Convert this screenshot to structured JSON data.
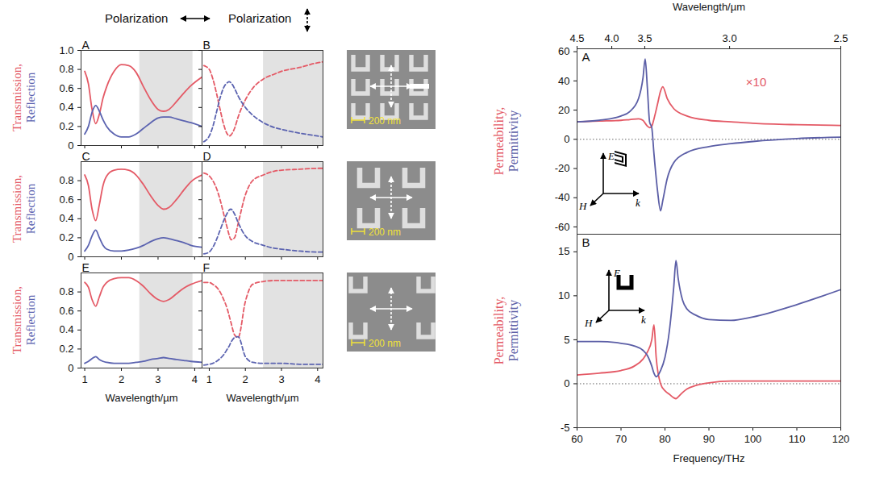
{
  "headers": [
    "Polarization",
    "Polarization"
  ],
  "images": [
    {
      "scale_bar": "200 nm"
    },
    {
      "scale_bar": "200 nm"
    },
    {
      "scale_bar": "200 nm"
    }
  ],
  "chart_data": [
    {
      "type": "line",
      "panel": "A",
      "ylabel": [
        "Transmission,",
        "Reflection"
      ],
      "xlim": [
        0.9,
        4.2
      ],
      "xticks": [
        1,
        2,
        3,
        4
      ],
      "ylim": [
        0,
        1
      ],
      "yticks": [
        0,
        0.2,
        0.4,
        0.6,
        0.8,
        {
          "value": 1,
          "label": "1.0"
        }
      ],
      "tick_labels": "y",
      "band": [
        2.5,
        3.95
      ],
      "x": [
        1,
        1.1,
        1.2,
        1.3,
        1.4,
        1.5,
        1.6,
        1.8,
        2,
        2.2,
        2.4,
        2.6,
        2.8,
        3,
        3.15,
        3.3,
        3.5,
        3.7,
        3.9,
        4.2
      ],
      "series": [
        {
          "name": "Transmission",
          "color": "#e45a66",
          "line_style": "solid",
          "values": [
            0.78,
            0.65,
            0.38,
            0.23,
            0.33,
            0.5,
            0.62,
            0.78,
            0.85,
            0.84,
            0.77,
            0.62,
            0.48,
            0.38,
            0.36,
            0.38,
            0.46,
            0.55,
            0.63,
            0.72
          ]
        },
        {
          "name": "Reflection",
          "color": "#5b63b0",
          "line_style": "solid",
          "values": [
            0.12,
            0.2,
            0.35,
            0.42,
            0.36,
            0.27,
            0.2,
            0.12,
            0.09,
            0.09,
            0.12,
            0.18,
            0.24,
            0.29,
            0.3,
            0.3,
            0.28,
            0.26,
            0.24,
            0.2
          ]
        }
      ]
    },
    {
      "type": "line",
      "panel": "B",
      "xlim": [
        0.8,
        4.15
      ],
      "xticks": [
        1,
        2,
        3,
        4
      ],
      "ylim": [
        0,
        1
      ],
      "yticks": [
        0,
        0.2,
        0.4,
        0.6,
        0.8,
        {
          "value": 1,
          "label": "1.0"
        }
      ],
      "tick_labels": false,
      "band": [
        2.5,
        4.15
      ],
      "x": [
        0.85,
        1,
        1.1,
        1.2,
        1.3,
        1.4,
        1.5,
        1.55,
        1.6,
        1.7,
        1.8,
        2,
        2.2,
        2.5,
        2.8,
        3,
        3.5,
        4,
        4.15
      ],
      "series": [
        {
          "name": "Transmission",
          "color": "#e45a66",
          "line_style": "dashed",
          "values": [
            0.84,
            0.8,
            0.7,
            0.55,
            0.38,
            0.22,
            0.12,
            0.1,
            0.11,
            0.18,
            0.3,
            0.48,
            0.6,
            0.7,
            0.75,
            0.78,
            0.82,
            0.87,
            0.88
          ]
        },
        {
          "name": "Reflection",
          "color": "#5b63b0",
          "line_style": "dashed",
          "values": [
            0.04,
            0.1,
            0.2,
            0.35,
            0.5,
            0.61,
            0.66,
            0.67,
            0.66,
            0.6,
            0.52,
            0.4,
            0.32,
            0.24,
            0.19,
            0.17,
            0.13,
            0.1,
            0.09
          ]
        }
      ]
    },
    {
      "type": "line",
      "panel": "C",
      "ylabel": [
        "Transmission,",
        "Reflection"
      ],
      "xlim": [
        0.9,
        4.2
      ],
      "xticks": [
        1,
        2,
        3,
        4
      ],
      "ylim": [
        0,
        1
      ],
      "yticks": [
        0,
        0.2,
        0.4,
        0.6,
        0.8
      ],
      "tick_labels": "y",
      "band": [
        2.5,
        3.95
      ],
      "x": [
        1,
        1.1,
        1.2,
        1.3,
        1.4,
        1.5,
        1.6,
        1.8,
        2,
        2.2,
        2.4,
        2.6,
        2.8,
        3,
        3.15,
        3.3,
        3.5,
        3.7,
        3.9,
        4.2
      ],
      "series": [
        {
          "name": "Transmission",
          "color": "#e45a66",
          "line_style": "solid",
          "values": [
            0.86,
            0.75,
            0.5,
            0.38,
            0.55,
            0.75,
            0.85,
            0.91,
            0.92,
            0.91,
            0.86,
            0.76,
            0.64,
            0.54,
            0.5,
            0.52,
            0.6,
            0.7,
            0.79,
            0.86
          ]
        },
        {
          "name": "Reflection",
          "color": "#5b63b0",
          "line_style": "solid",
          "values": [
            0.06,
            0.12,
            0.22,
            0.28,
            0.2,
            0.12,
            0.08,
            0.06,
            0.06,
            0.07,
            0.09,
            0.12,
            0.16,
            0.19,
            0.2,
            0.19,
            0.17,
            0.15,
            0.12,
            0.1
          ]
        }
      ]
    },
    {
      "type": "line",
      "panel": "D",
      "xlim": [
        0.8,
        4.15
      ],
      "xticks": [
        1,
        2,
        3,
        4
      ],
      "ylim": [
        0,
        1
      ],
      "yticks": [
        0,
        0.2,
        0.4,
        0.6,
        0.8
      ],
      "tick_labels": false,
      "band": [
        2.5,
        4.15
      ],
      "x": [
        0.85,
        1,
        1.1,
        1.2,
        1.3,
        1.4,
        1.5,
        1.55,
        1.6,
        1.7,
        1.8,
        2,
        2.2,
        2.5,
        2.8,
        3,
        3.5,
        4,
        4.15
      ],
      "series": [
        {
          "name": "Transmission",
          "color": "#e45a66",
          "line_style": "dashed",
          "values": [
            0.88,
            0.85,
            0.8,
            0.72,
            0.6,
            0.45,
            0.3,
            0.23,
            0.18,
            0.2,
            0.35,
            0.65,
            0.8,
            0.86,
            0.9,
            0.91,
            0.92,
            0.93,
            0.93
          ]
        },
        {
          "name": "Reflection",
          "color": "#5b63b0",
          "line_style": "dashed",
          "values": [
            0.03,
            0.05,
            0.1,
            0.18,
            0.28,
            0.38,
            0.46,
            0.49,
            0.5,
            0.45,
            0.36,
            0.22,
            0.16,
            0.12,
            0.09,
            0.08,
            0.06,
            0.05,
            0.05
          ]
        }
      ]
    },
    {
      "type": "line",
      "panel": "E",
      "ylabel": [
        "Transmission,",
        "Reflection"
      ],
      "xlabel": "Wavelength/µm",
      "xlim": [
        0.9,
        4.2
      ],
      "xticks": [
        1,
        2,
        3,
        4
      ],
      "ylim": [
        0,
        1
      ],
      "yticks": [
        0,
        0.2,
        0.4,
        0.6,
        0.8
      ],
      "tick_labels": true,
      "band": [
        2.5,
        3.95
      ],
      "x": [
        1,
        1.1,
        1.2,
        1.3,
        1.4,
        1.5,
        1.6,
        1.8,
        2,
        2.2,
        2.4,
        2.6,
        2.8,
        3,
        3.15,
        3.3,
        3.5,
        3.7,
        3.9,
        4.2
      ],
      "series": [
        {
          "name": "Transmission",
          "color": "#e45a66",
          "line_style": "solid",
          "values": [
            0.9,
            0.85,
            0.72,
            0.65,
            0.75,
            0.85,
            0.9,
            0.94,
            0.95,
            0.95,
            0.92,
            0.86,
            0.78,
            0.72,
            0.7,
            0.72,
            0.78,
            0.84,
            0.88,
            0.92
          ]
        },
        {
          "name": "Reflection",
          "color": "#5b63b0",
          "line_style": "solid",
          "values": [
            0.05,
            0.07,
            0.1,
            0.12,
            0.09,
            0.07,
            0.06,
            0.05,
            0.05,
            0.05,
            0.06,
            0.07,
            0.09,
            0.1,
            0.11,
            0.1,
            0.09,
            0.08,
            0.07,
            0.06
          ]
        }
      ]
    },
    {
      "type": "line",
      "panel": "F",
      "xlabel": "Wavelength/µm",
      "xlim": [
        0.8,
        4.15
      ],
      "xticks": [
        1,
        2,
        3,
        4
      ],
      "ylim": [
        0,
        1
      ],
      "yticks": [
        0,
        0.2,
        0.4,
        0.6,
        0.8
      ],
      "tick_labels": "x",
      "band": [
        2.5,
        4.15
      ],
      "x": [
        0.85,
        1,
        1.1,
        1.2,
        1.3,
        1.4,
        1.5,
        1.55,
        1.6,
        1.7,
        1.8,
        2,
        2.2,
        2.5,
        2.8,
        3,
        3.5,
        4,
        4.15
      ],
      "series": [
        {
          "name": "Transmission",
          "color": "#e45a66",
          "line_style": "dashed",
          "values": [
            0.9,
            0.9,
            0.88,
            0.85,
            0.8,
            0.72,
            0.62,
            0.55,
            0.48,
            0.35,
            0.32,
            0.7,
            0.88,
            0.91,
            0.92,
            0.92,
            0.92,
            0.92,
            0.92
          ]
        },
        {
          "name": "Reflection",
          "color": "#5b63b0",
          "line_style": "dashed",
          "values": [
            0.03,
            0.04,
            0.05,
            0.07,
            0.1,
            0.14,
            0.2,
            0.23,
            0.27,
            0.32,
            0.33,
            0.12,
            0.06,
            0.05,
            0.05,
            0.05,
            0.04,
            0.04,
            0.04
          ]
        }
      ]
    },
    {
      "type": "line",
      "panel": "A",
      "ylabel": [
        "Permeability,",
        "Permittivity"
      ],
      "xlim": [
        60,
        120
      ],
      "top_axis": {
        "label": "Wavelength/µm",
        "ticks": [
          {
            "value": 60,
            "label": "4.5"
          },
          {
            "value": 67.9,
            "label": "4.0"
          },
          {
            "value": 75.4,
            "label": "3.5"
          },
          {
            "value": 94.7,
            "label": "3.0"
          },
          {
            "value": 120,
            "label": "2.5"
          }
        ]
      },
      "ylim": [
        -65,
        62
      ],
      "yticks": [
        -60,
        -40,
        -20,
        0,
        20,
        40,
        60
      ],
      "reference_line": 0,
      "inset": [
        "E",
        "H",
        "k"
      ],
      "x": [
        60,
        65,
        70,
        72,
        74,
        75,
        75.5,
        76,
        76.5,
        77,
        77.5,
        78.3,
        79,
        79.5,
        80.5,
        82,
        85,
        90,
        95,
        100,
        110,
        120
      ],
      "series": [
        {
          "name": "Permeability",
          "color": "#e45a66",
          "line_style": "solid",
          "annotation": "×10",
          "values": [
            12,
            12.5,
            13,
            13.5,
            14,
            13,
            11,
            9,
            8,
            9,
            14,
            24,
            33,
            36,
            28,
            21,
            16,
            13,
            12,
            11,
            10,
            9.5
          ]
        },
        {
          "name": "Permittivity",
          "color": "#5b5ea6",
          "line_style": "solid",
          "values": [
            12,
            13,
            16,
            19,
            28,
            42,
            55,
            35,
            12,
            8,
            -10,
            -35,
            -49,
            -42,
            -27,
            -16,
            -9,
            -5,
            -3,
            -1.5,
            0.5,
            1.5
          ]
        }
      ]
    },
    {
      "type": "line",
      "panel": "B",
      "ylabel": [
        "Permeability,",
        "Permittivity"
      ],
      "xlabel": "Frequency/THz",
      "xlim": [
        60,
        120
      ],
      "xticks": [
        60,
        70,
        80,
        90,
        100,
        110,
        120
      ],
      "ylim": [
        -5,
        17
      ],
      "yticks": [
        -5,
        0,
        5,
        10,
        15
      ],
      "reference_line": 0,
      "inset": [
        "E",
        "H",
        "k"
      ],
      "x": [
        60,
        65,
        70,
        73,
        75,
        76,
        77,
        77.5,
        78,
        79,
        80,
        81,
        82,
        82.5,
        83,
        84,
        85,
        87,
        90,
        95,
        100,
        110,
        120
      ],
      "series": [
        {
          "name": "Permeability",
          "color": "#e45a66",
          "line_style": "solid",
          "values": [
            1,
            1.2,
            1.5,
            2,
            2.8,
            3.6,
            5,
            6.7,
            3,
            0,
            -0.8,
            -1.2,
            -1.6,
            -1.7,
            -1.5,
            -1,
            -0.6,
            -0.2,
            0.1,
            0.3,
            0.3,
            0.3,
            0.3
          ]
        },
        {
          "name": "Permittivity",
          "color": "#5b5ea6",
          "line_style": "solid",
          "values": [
            4.8,
            4.8,
            4.6,
            4.3,
            3.8,
            3.2,
            2,
            1.2,
            0.8,
            1.5,
            3,
            6,
            11,
            14,
            12,
            9.5,
            8.5,
            7.8,
            7.3,
            7.2,
            7.6,
            9,
            10.7
          ]
        }
      ]
    }
  ]
}
